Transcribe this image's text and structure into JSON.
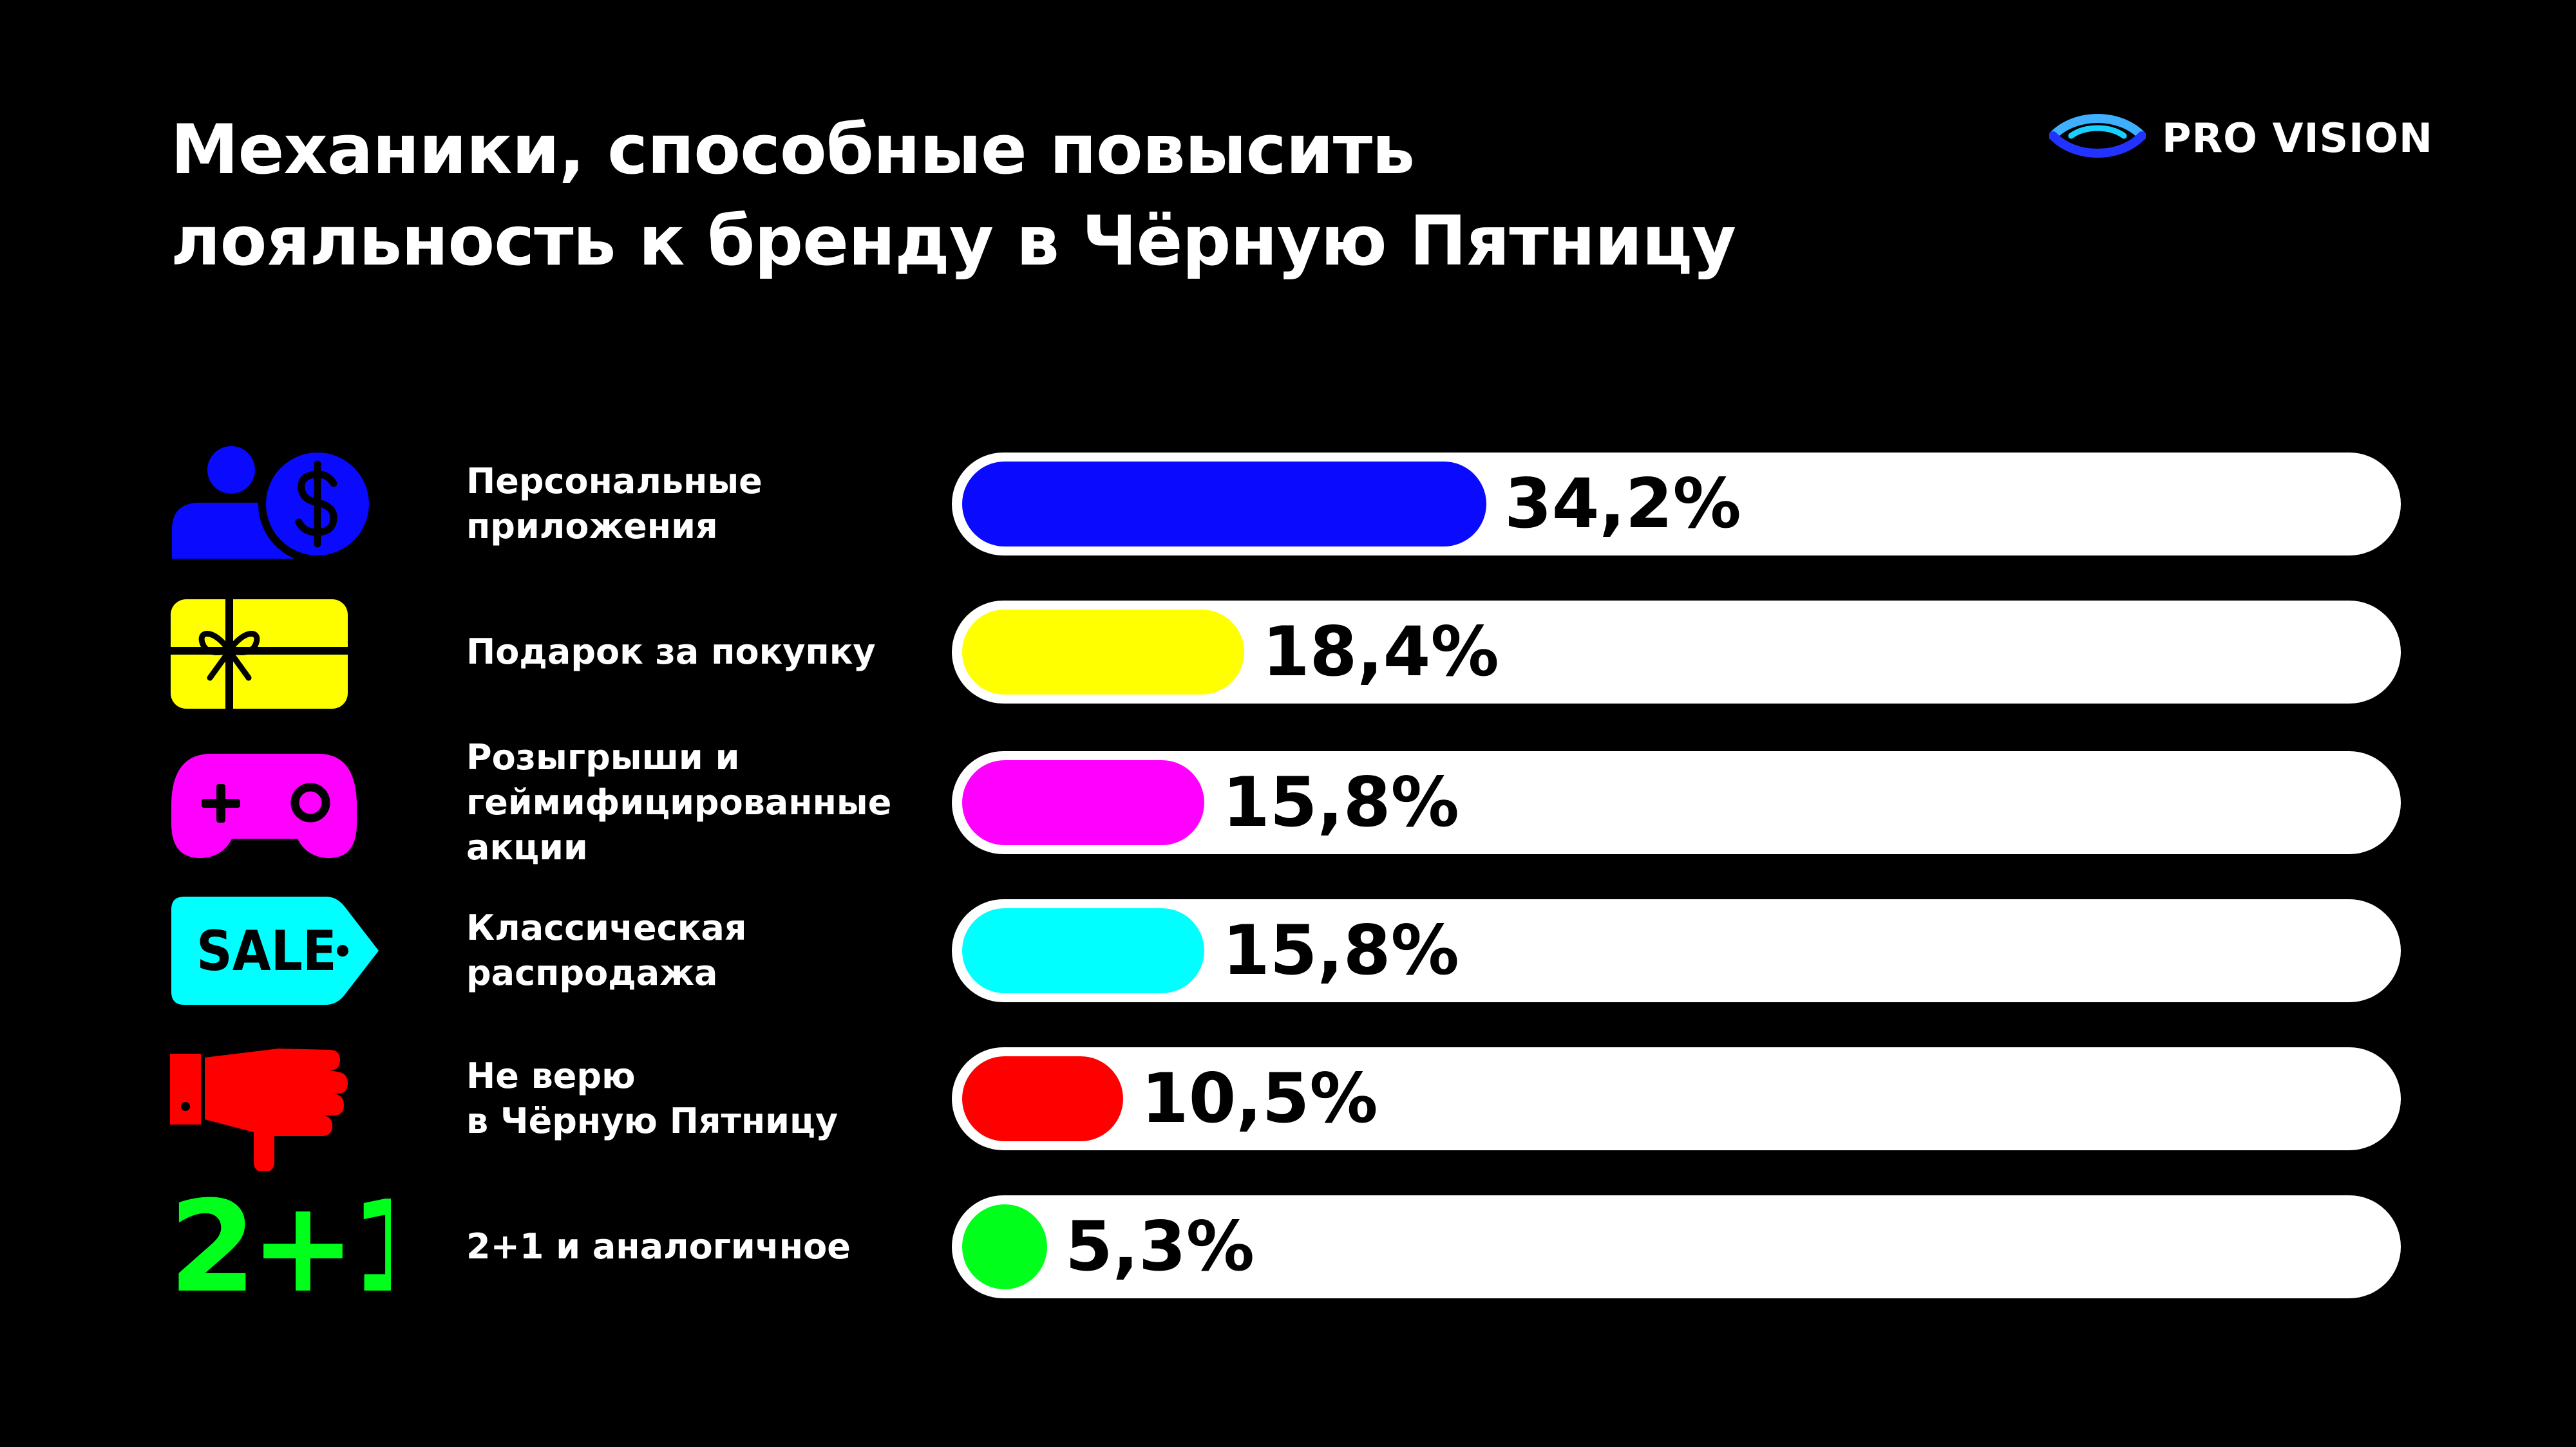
{
  "title": {
    "line1": "Механики, способные повысить",
    "line2": "лояльность к бренду в Чёрную Пятницу"
  },
  "logo": {
    "text": "PRO VISION"
  },
  "chart_data": {
    "type": "bar",
    "orientation": "horizontal",
    "xlim": [
      0,
      100
    ],
    "categories": [
      "Персональные приложения",
      "Подарок за покупку",
      "Розыгрыши и геймифицированные акции",
      "Классическая распродажа",
      "Не верю в Чёрную Пятницу",
      "2+1 и аналогичное"
    ],
    "values": [
      34.2,
      18.4,
      15.8,
      15.8,
      10.5,
      5.3
    ],
    "value_labels": [
      "34,2%",
      "18,4%",
      "15,8%",
      "15,8%",
      "10,5%",
      "5,3%"
    ],
    "colors": [
      "#0a0aff",
      "#ffff00",
      "#ff00ff",
      "#00ffff",
      "#ff0000",
      "#00ff1a"
    ]
  },
  "rows": [
    {
      "label": "Персональные\nприложения",
      "icon": "user-dollar-icon"
    },
    {
      "label": "Подарок за покупку",
      "icon": "gift-card-icon"
    },
    {
      "label": "Розыгрыши и\nгеймифицированные\nакции",
      "icon": "gamepad-icon"
    },
    {
      "label": "Классическая\nраспродажа",
      "icon": "sale-tag-icon",
      "icon_text": "SALE"
    },
    {
      "label": "Не верю\nв Чёрную Пятницу",
      "icon": "thumbs-down-icon"
    },
    {
      "label": "2+1 и аналогичное",
      "icon": "two-plus-one-icon",
      "icon_text": "2+1"
    }
  ]
}
